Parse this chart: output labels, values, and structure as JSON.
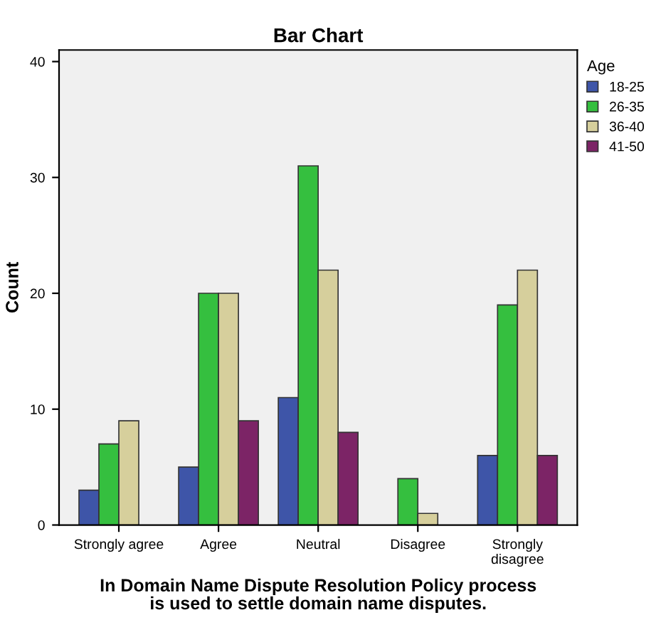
{
  "chart_data": {
    "type": "bar",
    "title": "Bar Chart",
    "xlabel": "In Domain Name Dispute Resolution Policy process\nis used to settle domain name disputes.",
    "ylabel": "Count",
    "legend_title": "Age",
    "legend": "top right",
    "categories": [
      "Strongly agree",
      "Agree",
      "Neutral",
      "Disagree",
      "Strongly\ndisagree"
    ],
    "series": [
      {
        "name": "18-25",
        "color": "#3e55a8",
        "values": [
          3,
          5,
          11,
          null,
          6
        ]
      },
      {
        "name": "26-35",
        "color": "#35bf3f",
        "values": [
          7,
          20,
          31,
          4,
          19
        ]
      },
      {
        "name": "36-40",
        "color": "#d6cf9c",
        "values": [
          9,
          20,
          22,
          1,
          22
        ]
      },
      {
        "name": "41-50",
        "color": "#7c2466",
        "values": [
          null,
          9,
          8,
          null,
          6
        ]
      }
    ],
    "ylim": [
      0,
      41
    ],
    "yticks": [
      0,
      10,
      20,
      30,
      40
    ],
    "grid": false
  }
}
